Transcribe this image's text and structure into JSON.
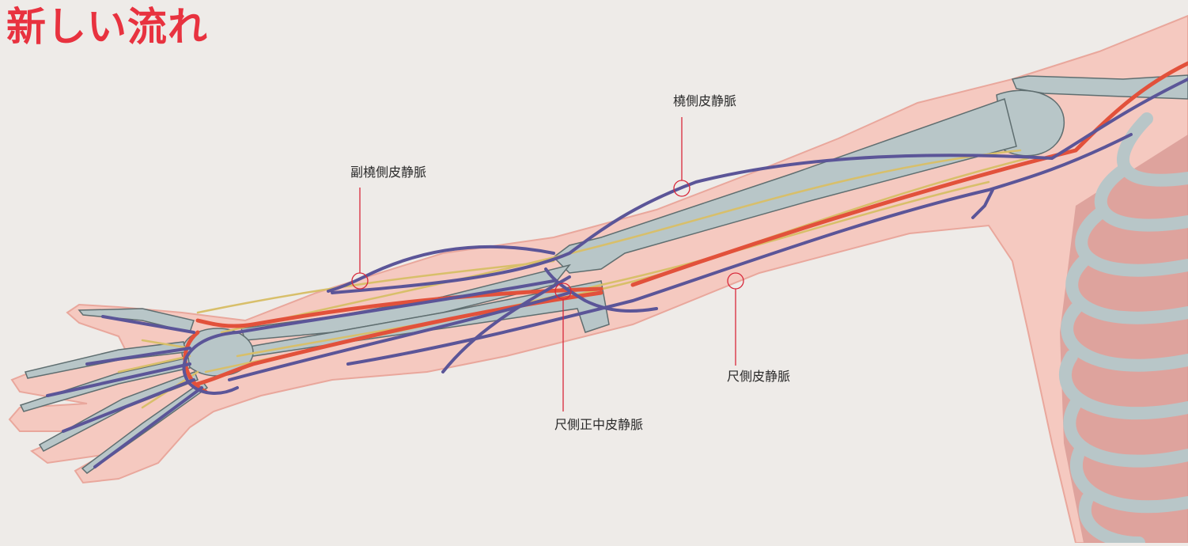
{
  "title": "新しい流れ",
  "colors": {
    "title": "#e8323f",
    "background": "#eeebe8",
    "skin": "#f5c9c0",
    "skin_edge": "#e9a79c",
    "bone": "#b8c6c8",
    "bone_edge": "#5f6e70",
    "vein": "#5b5598",
    "artery": "#e2513b",
    "nerve": "#d8bf6a",
    "leader": "#d8283a"
  },
  "labels": {
    "accessory_cephalic": "副橈側皮静脈",
    "cephalic": "橈側皮静脈",
    "basilic": "尺側皮静脈",
    "median_basilic": "尺側正中皮静脈"
  }
}
